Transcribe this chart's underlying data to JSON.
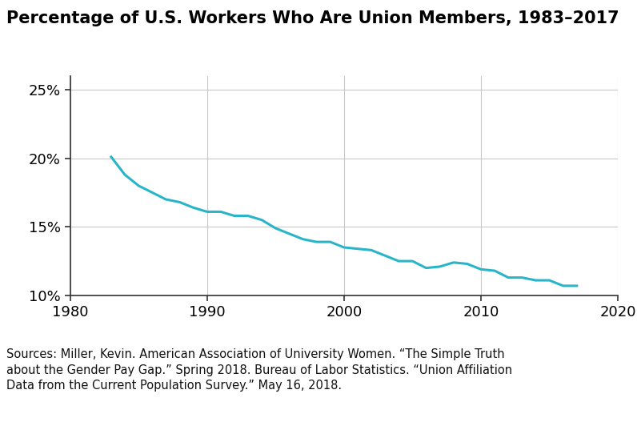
{
  "title": "Percentage of U.S. Workers Who Are Union Members, 1983–2017",
  "years": [
    1983,
    1984,
    1985,
    1986,
    1987,
    1988,
    1989,
    1990,
    1991,
    1992,
    1993,
    1994,
    1995,
    1996,
    1997,
    1998,
    1999,
    2000,
    2001,
    2002,
    2003,
    2004,
    2005,
    2006,
    2007,
    2008,
    2009,
    2010,
    2011,
    2012,
    2013,
    2014,
    2015,
    2016,
    2017
  ],
  "values": [
    20.1,
    18.8,
    18.0,
    17.5,
    17.0,
    16.8,
    16.4,
    16.1,
    16.1,
    15.8,
    15.8,
    15.5,
    14.9,
    14.5,
    14.1,
    13.9,
    13.9,
    13.5,
    13.4,
    13.3,
    12.9,
    12.5,
    12.5,
    12.0,
    12.1,
    12.4,
    12.3,
    11.9,
    11.8,
    11.3,
    11.3,
    11.1,
    11.1,
    10.7,
    10.7
  ],
  "line_color": "#29b5c8",
  "line_width": 2.2,
  "xlim": [
    1980,
    2020
  ],
  "ylim": [
    10,
    26
  ],
  "xticks": [
    1980,
    1990,
    2000,
    2010,
    2020
  ],
  "yticks": [
    10,
    15,
    20,
    25
  ],
  "ytick_labels": [
    "10%",
    "15%",
    "20%",
    "25%"
  ],
  "grid_color": "#c8c8c8",
  "background_color": "#ffffff",
  "caption": "Sources: Miller, Kevin. American Association of University Women. “The Simple Truth\nabout the Gender Pay Gap.” Spring 2018. Bureau of Labor Statistics. “Union Affiliation\nData from the Current Population Survey.” May 16, 2018.",
  "title_fontsize": 15,
  "caption_fontsize": 10.5,
  "tick_fontsize": 13,
  "spine_color": "#333333"
}
